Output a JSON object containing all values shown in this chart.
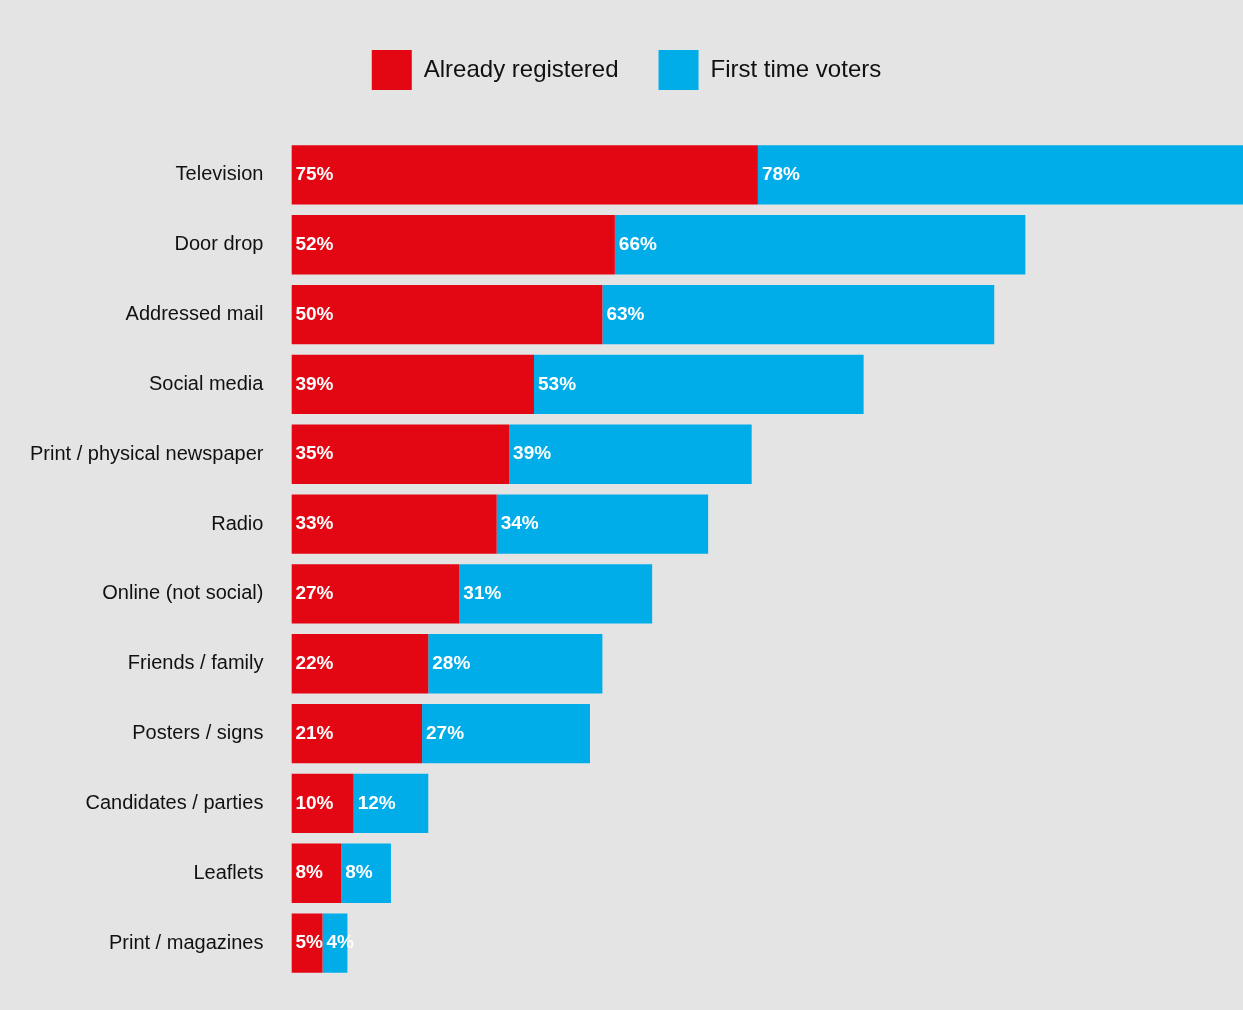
{
  "chart_data": {
    "type": "bar",
    "orientation": "horizontal",
    "stacked": true,
    "legend": "top",
    "categories": [
      "Television",
      "Door drop",
      "Addressed mail",
      "Social media",
      "Print / physical newspaper",
      "Radio",
      "Online (not social)",
      "Friends / family",
      "Posters / signs",
      "Candidates / parties",
      "Leaflets",
      "Print / magazines"
    ],
    "series": [
      {
        "name": "Already registered",
        "color": "#e30613",
        "values": [
          75,
          52,
          50,
          39,
          35,
          33,
          27,
          22,
          21,
          10,
          8,
          5
        ],
        "value_labels": [
          "75%",
          "52%",
          "50%",
          "39%",
          "35%",
          "33%",
          "27%",
          "22%",
          "21%",
          "10%",
          "8%",
          "5%"
        ]
      },
      {
        "name": "First time voters",
        "color": "#00ade9",
        "values": [
          78,
          66,
          63,
          53,
          39,
          34,
          31,
          28,
          27,
          12,
          8,
          4
        ],
        "value_labels": [
          "78%",
          "66%",
          "63%",
          "53%",
          "39%",
          "34%",
          "31%",
          "28%",
          "27%",
          "12%",
          "8%",
          "4%"
        ]
      }
    ]
  }
}
